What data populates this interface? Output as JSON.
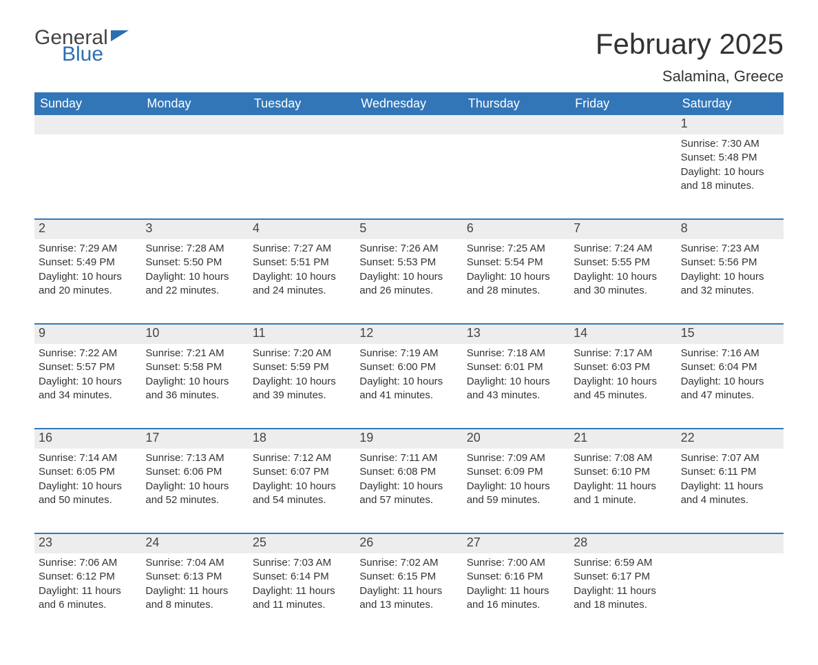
{
  "brand": {
    "word1": "General",
    "word2": "Blue"
  },
  "title": "February 2025",
  "location": "Salamina, Greece",
  "colors": {
    "header_bg": "#3276b8",
    "header_text": "#ffffff",
    "daynum_bg": "#ededed",
    "row_border": "#3276b8",
    "body_text": "#333333",
    "brand_accent": "#2b6eb3"
  },
  "columns": [
    "Sunday",
    "Monday",
    "Tuesday",
    "Wednesday",
    "Thursday",
    "Friday",
    "Saturday"
  ],
  "weeks": [
    [
      null,
      null,
      null,
      null,
      null,
      null,
      {
        "day": "1",
        "sunrise": "Sunrise: 7:30 AM",
        "sunset": "Sunset: 5:48 PM",
        "daylight1": "Daylight: 10 hours",
        "daylight2": "and 18 minutes."
      }
    ],
    [
      {
        "day": "2",
        "sunrise": "Sunrise: 7:29 AM",
        "sunset": "Sunset: 5:49 PM",
        "daylight1": "Daylight: 10 hours",
        "daylight2": "and 20 minutes."
      },
      {
        "day": "3",
        "sunrise": "Sunrise: 7:28 AM",
        "sunset": "Sunset: 5:50 PM",
        "daylight1": "Daylight: 10 hours",
        "daylight2": "and 22 minutes."
      },
      {
        "day": "4",
        "sunrise": "Sunrise: 7:27 AM",
        "sunset": "Sunset: 5:51 PM",
        "daylight1": "Daylight: 10 hours",
        "daylight2": "and 24 minutes."
      },
      {
        "day": "5",
        "sunrise": "Sunrise: 7:26 AM",
        "sunset": "Sunset: 5:53 PM",
        "daylight1": "Daylight: 10 hours",
        "daylight2": "and 26 minutes."
      },
      {
        "day": "6",
        "sunrise": "Sunrise: 7:25 AM",
        "sunset": "Sunset: 5:54 PM",
        "daylight1": "Daylight: 10 hours",
        "daylight2": "and 28 minutes."
      },
      {
        "day": "7",
        "sunrise": "Sunrise: 7:24 AM",
        "sunset": "Sunset: 5:55 PM",
        "daylight1": "Daylight: 10 hours",
        "daylight2": "and 30 minutes."
      },
      {
        "day": "8",
        "sunrise": "Sunrise: 7:23 AM",
        "sunset": "Sunset: 5:56 PM",
        "daylight1": "Daylight: 10 hours",
        "daylight2": "and 32 minutes."
      }
    ],
    [
      {
        "day": "9",
        "sunrise": "Sunrise: 7:22 AM",
        "sunset": "Sunset: 5:57 PM",
        "daylight1": "Daylight: 10 hours",
        "daylight2": "and 34 minutes."
      },
      {
        "day": "10",
        "sunrise": "Sunrise: 7:21 AM",
        "sunset": "Sunset: 5:58 PM",
        "daylight1": "Daylight: 10 hours",
        "daylight2": "and 36 minutes."
      },
      {
        "day": "11",
        "sunrise": "Sunrise: 7:20 AM",
        "sunset": "Sunset: 5:59 PM",
        "daylight1": "Daylight: 10 hours",
        "daylight2": "and 39 minutes."
      },
      {
        "day": "12",
        "sunrise": "Sunrise: 7:19 AM",
        "sunset": "Sunset: 6:00 PM",
        "daylight1": "Daylight: 10 hours",
        "daylight2": "and 41 minutes."
      },
      {
        "day": "13",
        "sunrise": "Sunrise: 7:18 AM",
        "sunset": "Sunset: 6:01 PM",
        "daylight1": "Daylight: 10 hours",
        "daylight2": "and 43 minutes."
      },
      {
        "day": "14",
        "sunrise": "Sunrise: 7:17 AM",
        "sunset": "Sunset: 6:03 PM",
        "daylight1": "Daylight: 10 hours",
        "daylight2": "and 45 minutes."
      },
      {
        "day": "15",
        "sunrise": "Sunrise: 7:16 AM",
        "sunset": "Sunset: 6:04 PM",
        "daylight1": "Daylight: 10 hours",
        "daylight2": "and 47 minutes."
      }
    ],
    [
      {
        "day": "16",
        "sunrise": "Sunrise: 7:14 AM",
        "sunset": "Sunset: 6:05 PM",
        "daylight1": "Daylight: 10 hours",
        "daylight2": "and 50 minutes."
      },
      {
        "day": "17",
        "sunrise": "Sunrise: 7:13 AM",
        "sunset": "Sunset: 6:06 PM",
        "daylight1": "Daylight: 10 hours",
        "daylight2": "and 52 minutes."
      },
      {
        "day": "18",
        "sunrise": "Sunrise: 7:12 AM",
        "sunset": "Sunset: 6:07 PM",
        "daylight1": "Daylight: 10 hours",
        "daylight2": "and 54 minutes."
      },
      {
        "day": "19",
        "sunrise": "Sunrise: 7:11 AM",
        "sunset": "Sunset: 6:08 PM",
        "daylight1": "Daylight: 10 hours",
        "daylight2": "and 57 minutes."
      },
      {
        "day": "20",
        "sunrise": "Sunrise: 7:09 AM",
        "sunset": "Sunset: 6:09 PM",
        "daylight1": "Daylight: 10 hours",
        "daylight2": "and 59 minutes."
      },
      {
        "day": "21",
        "sunrise": "Sunrise: 7:08 AM",
        "sunset": "Sunset: 6:10 PM",
        "daylight1": "Daylight: 11 hours",
        "daylight2": "and 1 minute."
      },
      {
        "day": "22",
        "sunrise": "Sunrise: 7:07 AM",
        "sunset": "Sunset: 6:11 PM",
        "daylight1": "Daylight: 11 hours",
        "daylight2": "and 4 minutes."
      }
    ],
    [
      {
        "day": "23",
        "sunrise": "Sunrise: 7:06 AM",
        "sunset": "Sunset: 6:12 PM",
        "daylight1": "Daylight: 11 hours",
        "daylight2": "and 6 minutes."
      },
      {
        "day": "24",
        "sunrise": "Sunrise: 7:04 AM",
        "sunset": "Sunset: 6:13 PM",
        "daylight1": "Daylight: 11 hours",
        "daylight2": "and 8 minutes."
      },
      {
        "day": "25",
        "sunrise": "Sunrise: 7:03 AM",
        "sunset": "Sunset: 6:14 PM",
        "daylight1": "Daylight: 11 hours",
        "daylight2": "and 11 minutes."
      },
      {
        "day": "26",
        "sunrise": "Sunrise: 7:02 AM",
        "sunset": "Sunset: 6:15 PM",
        "daylight1": "Daylight: 11 hours",
        "daylight2": "and 13 minutes."
      },
      {
        "day": "27",
        "sunrise": "Sunrise: 7:00 AM",
        "sunset": "Sunset: 6:16 PM",
        "daylight1": "Daylight: 11 hours",
        "daylight2": "and 16 minutes."
      },
      {
        "day": "28",
        "sunrise": "Sunrise: 6:59 AM",
        "sunset": "Sunset: 6:17 PM",
        "daylight1": "Daylight: 11 hours",
        "daylight2": "and 18 minutes."
      },
      null
    ]
  ]
}
